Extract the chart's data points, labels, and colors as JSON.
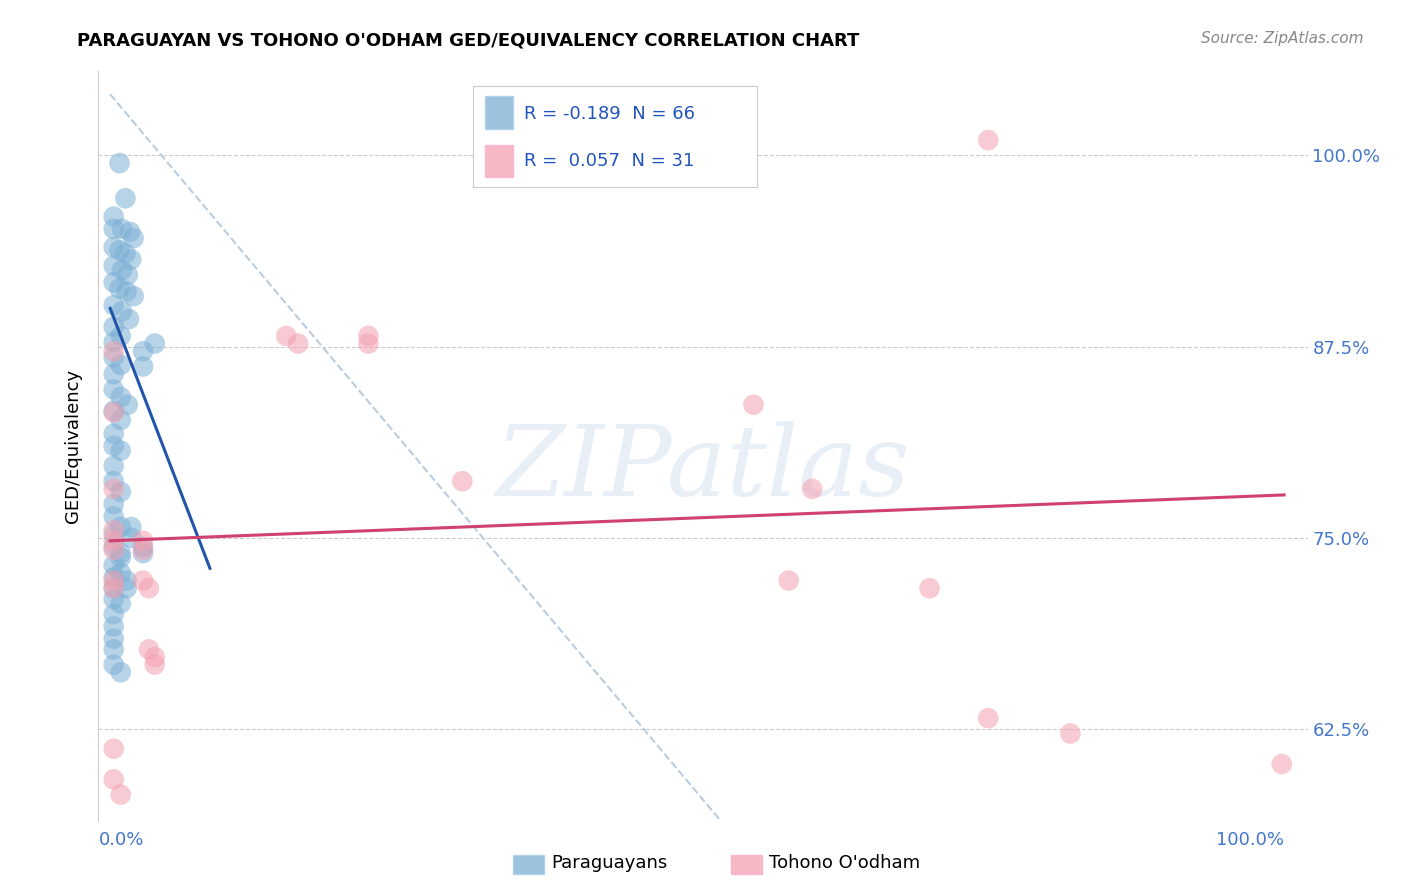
{
  "title": "PARAGUAYAN VS TOHONO O'ODHAM GED/EQUIVALENCY CORRELATION CHART",
  "source": "Source: ZipAtlas.com",
  "ylabel": "GED/Equivalency",
  "ytick_labels": [
    "62.5%",
    "75.0%",
    "87.5%",
    "100.0%"
  ],
  "ytick_values": [
    0.625,
    0.75,
    0.875,
    1.0
  ],
  "xlim": [
    -0.01,
    1.02
  ],
  "ylim": [
    0.565,
    1.055
  ],
  "blue_color": "#7BAFD4",
  "pink_color": "#F4A0B0",
  "blue_line_color": "#2255AA",
  "pink_line_color": "#D04070",
  "dashed_line_color": "#BBCCDD",
  "watermark": "ZIPatlas",
  "blue_points": [
    [
      0.008,
      0.995
    ],
    [
      0.013,
      0.972
    ],
    [
      0.003,
      0.96
    ],
    [
      0.003,
      0.952
    ],
    [
      0.01,
      0.952
    ],
    [
      0.017,
      0.95
    ],
    [
      0.02,
      0.946
    ],
    [
      0.003,
      0.94
    ],
    [
      0.008,
      0.938
    ],
    [
      0.013,
      0.936
    ],
    [
      0.018,
      0.932
    ],
    [
      0.003,
      0.928
    ],
    [
      0.01,
      0.925
    ],
    [
      0.015,
      0.922
    ],
    [
      0.003,
      0.917
    ],
    [
      0.008,
      0.913
    ],
    [
      0.014,
      0.911
    ],
    [
      0.02,
      0.908
    ],
    [
      0.003,
      0.902
    ],
    [
      0.01,
      0.898
    ],
    [
      0.016,
      0.893
    ],
    [
      0.003,
      0.888
    ],
    [
      0.009,
      0.882
    ],
    [
      0.003,
      0.878
    ],
    [
      0.003,
      0.868
    ],
    [
      0.009,
      0.863
    ],
    [
      0.003,
      0.857
    ],
    [
      0.003,
      0.847
    ],
    [
      0.009,
      0.842
    ],
    [
      0.015,
      0.837
    ],
    [
      0.003,
      0.833
    ],
    [
      0.009,
      0.827
    ],
    [
      0.003,
      0.818
    ],
    [
      0.003,
      0.81
    ],
    [
      0.009,
      0.807
    ],
    [
      0.003,
      0.797
    ],
    [
      0.003,
      0.787
    ],
    [
      0.009,
      0.78
    ],
    [
      0.003,
      0.772
    ],
    [
      0.003,
      0.764
    ],
    [
      0.009,
      0.757
    ],
    [
      0.003,
      0.752
    ],
    [
      0.003,
      0.744
    ],
    [
      0.009,
      0.74
    ],
    [
      0.003,
      0.732
    ],
    [
      0.003,
      0.724
    ],
    [
      0.003,
      0.717
    ],
    [
      0.003,
      0.71
    ],
    [
      0.009,
      0.707
    ],
    [
      0.003,
      0.7
    ],
    [
      0.003,
      0.692
    ],
    [
      0.003,
      0.684
    ],
    [
      0.003,
      0.677
    ],
    [
      0.003,
      0.667
    ],
    [
      0.009,
      0.662
    ],
    [
      0.028,
      0.862
    ],
    [
      0.028,
      0.872
    ],
    [
      0.038,
      0.877
    ],
    [
      0.018,
      0.757
    ],
    [
      0.018,
      0.75
    ],
    [
      0.028,
      0.744
    ],
    [
      0.028,
      0.74
    ],
    [
      0.009,
      0.737
    ],
    [
      0.009,
      0.727
    ],
    [
      0.014,
      0.722
    ],
    [
      0.014,
      0.717
    ]
  ],
  "pink_points": [
    [
      0.003,
      0.872
    ],
    [
      0.003,
      0.832
    ],
    [
      0.003,
      0.782
    ],
    [
      0.003,
      0.755
    ],
    [
      0.003,
      0.748
    ],
    [
      0.003,
      0.742
    ],
    [
      0.003,
      0.722
    ],
    [
      0.003,
      0.717
    ],
    [
      0.003,
      0.612
    ],
    [
      0.003,
      0.592
    ],
    [
      0.009,
      0.582
    ],
    [
      0.028,
      0.748
    ],
    [
      0.028,
      0.742
    ],
    [
      0.028,
      0.722
    ],
    [
      0.033,
      0.717
    ],
    [
      0.033,
      0.677
    ],
    [
      0.038,
      0.672
    ],
    [
      0.038,
      0.667
    ],
    [
      0.15,
      0.882
    ],
    [
      0.16,
      0.877
    ],
    [
      0.22,
      0.882
    ],
    [
      0.22,
      0.877
    ],
    [
      0.3,
      0.787
    ],
    [
      0.548,
      0.837
    ],
    [
      0.578,
      0.722
    ],
    [
      0.598,
      0.782
    ],
    [
      0.698,
      0.717
    ],
    [
      0.748,
      1.01
    ],
    [
      0.748,
      0.632
    ],
    [
      0.818,
      0.622
    ],
    [
      0.998,
      0.602
    ]
  ],
  "blue_trend_x": [
    0.0,
    0.085
  ],
  "blue_trend_y": [
    0.9,
    0.73
  ],
  "pink_trend_x": [
    0.0,
    1.0
  ],
  "pink_trend_y": [
    0.748,
    0.778
  ],
  "dashed_trend_x": [
    0.0,
    0.52
  ],
  "dashed_trend_y": [
    1.04,
    0.565
  ],
  "legend_items": [
    {
      "color": "#7BAFD4",
      "text": "R = -0.189  N = 66"
    },
    {
      "color": "#F4A0B0",
      "text": "R =  0.057  N = 31"
    }
  ],
  "bottom_legend": [
    {
      "color": "#7BAFD4",
      "label": "Paraguayans"
    },
    {
      "color": "#F4A0B0",
      "label": "Tohono O'odham"
    }
  ]
}
